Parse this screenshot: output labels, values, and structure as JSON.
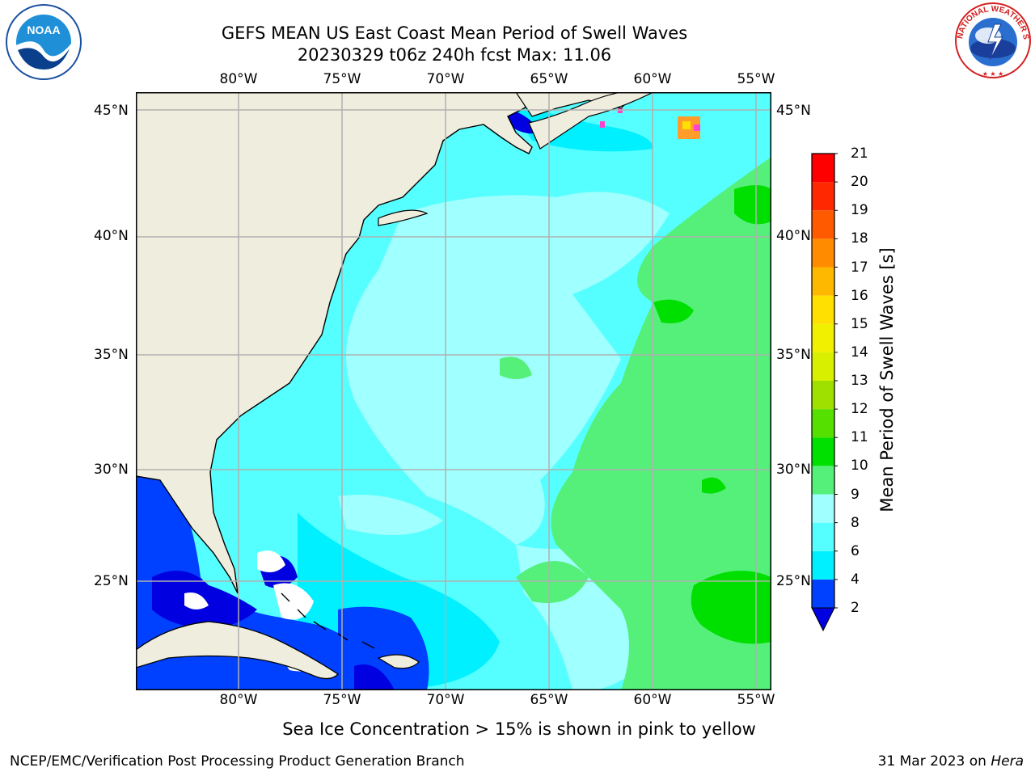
{
  "header": {
    "title": "GEFS MEAN US East Coast Mean Period of Swell Waves",
    "subtitle": "20230329 t06z 240h fcst   Max: 11.06"
  },
  "map": {
    "lon_labels": [
      "80°W",
      "75°W",
      "70°W",
      "65°W",
      "60°W",
      "55°W"
    ],
    "lat_labels": [
      "45°N",
      "40°N",
      "35°N",
      "30°N",
      "25°N"
    ],
    "land_color": "#efedde",
    "gridline_color": "#b0b0b0"
  },
  "colorbar": {
    "label": "Mean Period of Swell Waves [s]",
    "ticks": [
      "2",
      "4",
      "6",
      "8",
      "9",
      "10",
      "11",
      "12",
      "13",
      "14",
      "15",
      "16",
      "17",
      "18",
      "19",
      "20",
      "21"
    ],
    "colors": [
      "#0040ff",
      "#00f0ff",
      "#55ffff",
      "#a0ffff",
      "#55f07a",
      "#00e000",
      "#55e000",
      "#a0e000",
      "#d8f000",
      "#f0f000",
      "#ffe000",
      "#ffb800",
      "#ff8c00",
      "#ff5a00",
      "#ff2800",
      "#ff0000"
    ],
    "under_color": "#0000e0"
  },
  "note": "Sea Ice Concentration > 15% is shown in pink to yellow",
  "footer": {
    "left": "NCEP/EMC/Verification Post Processing Product Generation Branch",
    "date": "31 Mar 2023 on ",
    "host": "Hera"
  },
  "logos": {
    "noaa_text": "NOAA",
    "nws_text": "NATIONAL WEATHER SERVICE"
  }
}
